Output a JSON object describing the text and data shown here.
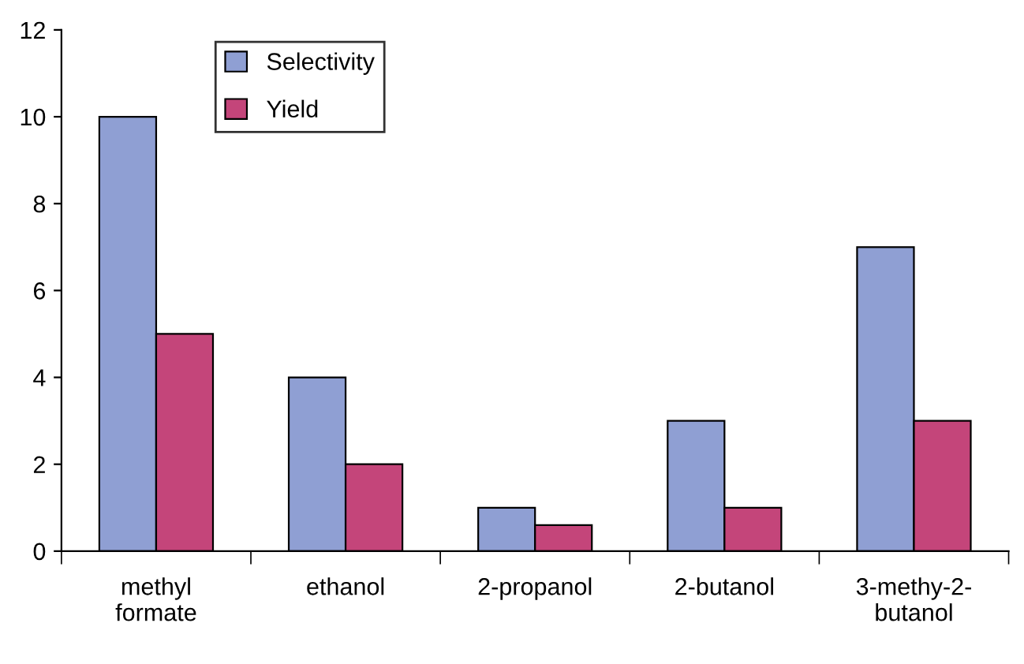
{
  "chart_data": {
    "type": "bar",
    "categories": [
      "methyl\nformate",
      "ethanol",
      "2-propanol",
      "2-butanol",
      "3-methy-2-\nbutanol"
    ],
    "series": [
      {
        "name": "Selectivity",
        "color": "#8f9fd3",
        "values": [
          10,
          4,
          1,
          3,
          7
        ]
      },
      {
        "name": "Yield",
        "color": "#c4457a",
        "values": [
          5,
          2,
          0.6,
          1,
          3
        ]
      }
    ],
    "ylim": [
      0,
      12
    ],
    "yticks": [
      0,
      2,
      4,
      6,
      8,
      10,
      12
    ],
    "grid": false,
    "legend": "top left"
  }
}
